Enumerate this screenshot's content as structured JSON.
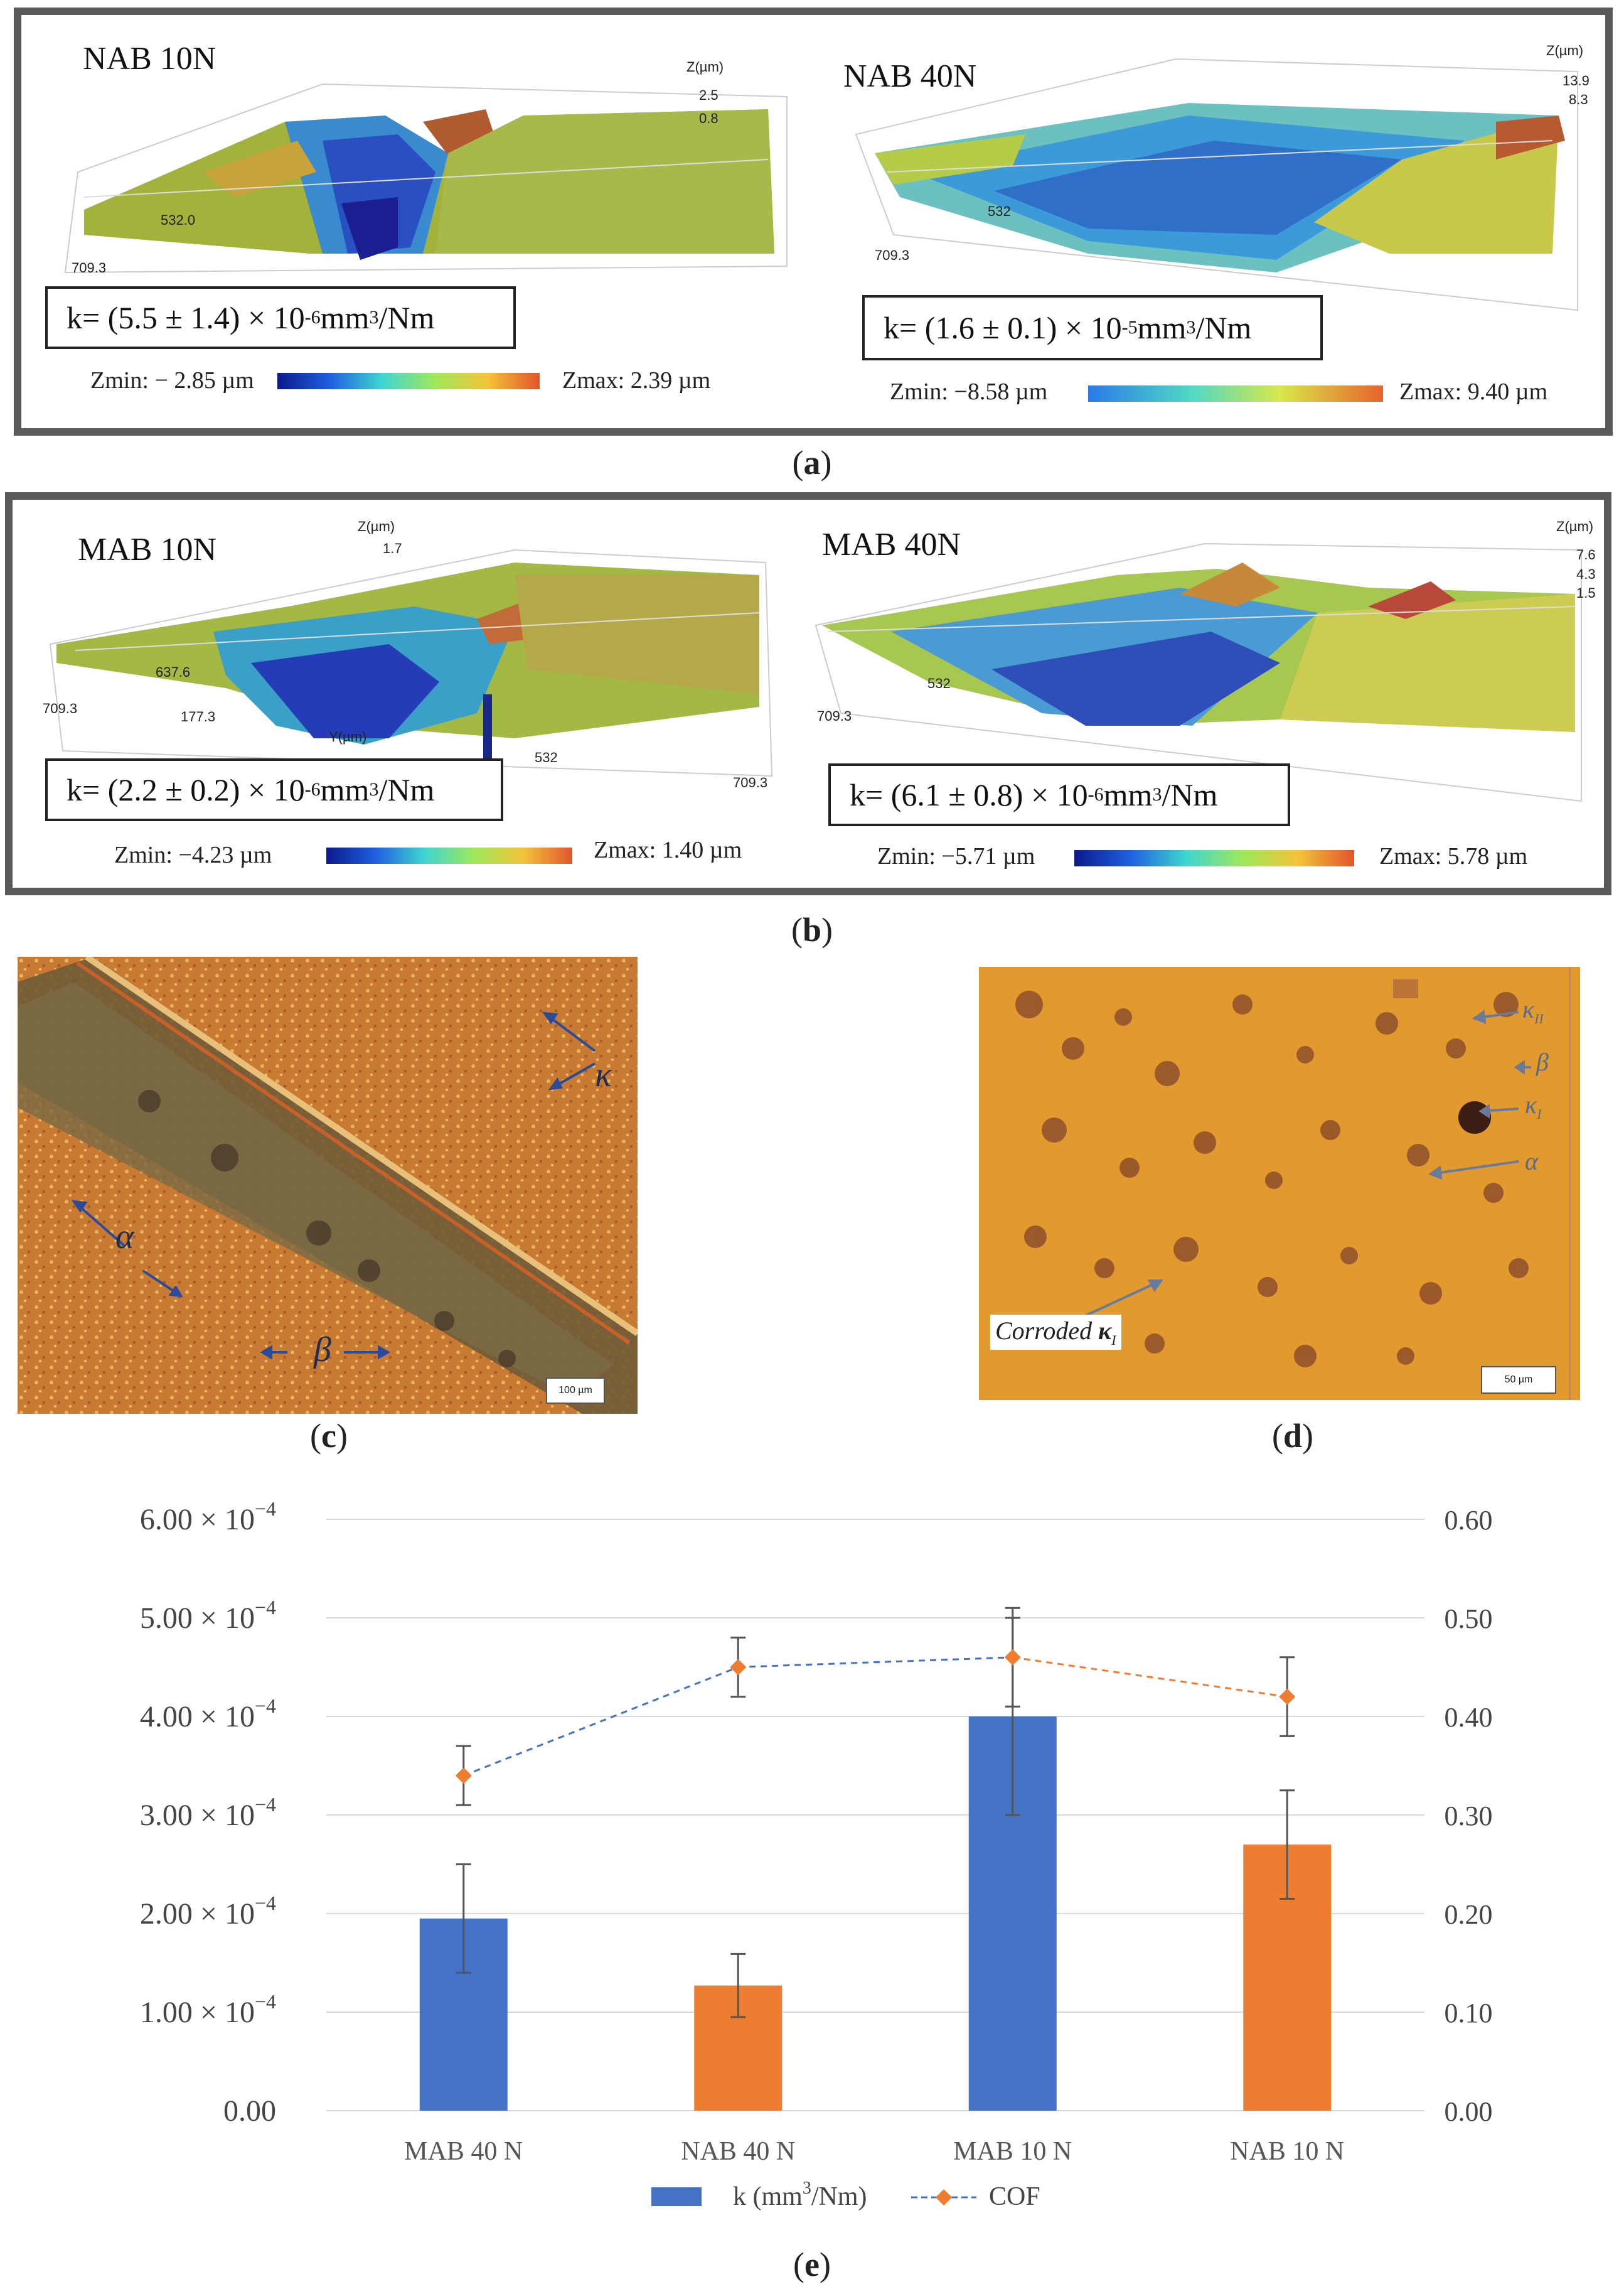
{
  "panel_a": {
    "caption": "a",
    "left": {
      "title": "NAB 10N",
      "k": "k= (5.5 ± 1.4) × 10",
      "k_exp": "-6",
      "k_unit": " mm",
      "k_unit_exp": "3",
      "k_unit_tail": "/Nm",
      "zmin": "Zmin: − 2.85 µm",
      "zmax": "Zmax: 2.39 µm",
      "ticks": {
        "z_axis": "Z(µm)",
        "z1": "2.5",
        "z2": "0.8",
        "y": "532.0",
        "x": "709.3"
      }
    },
    "right": {
      "title": "NAB 40N",
      "k": "k= (1.6 ± 0.1) × 10",
      "k_exp": "-5",
      "k_unit": " mm",
      "k_unit_exp": "3",
      "k_unit_tail": "/Nm",
      "zmin": "Zmin: −8.58 µm",
      "zmax": "Zmax: 9.40 µm",
      "ticks": {
        "z_axis": "Z(µm)",
        "z1": "13.9",
        "z2": "8.3",
        "x": "709.3",
        "y": "532"
      }
    }
  },
  "panel_b": {
    "caption": "b",
    "left": {
      "title": "MAB 10N",
      "k": "k= (2.2 ± 0.2) × 10",
      "k_exp": "-6",
      "k_unit": " mm",
      "k_unit_exp": "3",
      "k_unit_tail": "/Nm",
      "zmin": "Zmin: −4.23 µm",
      "zmax": "Zmax: 1.40 µm",
      "ticks": {
        "z_axis": "Z(µm)",
        "z1": "1.7",
        "a": "637.6",
        "b": "709.3",
        "c": "177.3",
        "y_axis": "Y(µm)",
        "d": "532",
        "e": "709.3"
      }
    },
    "right": {
      "title": "MAB 40N",
      "k": "k= (6.1 ± 0.8) × 10",
      "k_exp": "-6",
      "k_unit": " mm",
      "k_unit_exp": "3",
      "k_unit_tail": "/Nm",
      "zmin": "Zmin: −5.71 µm",
      "zmax": "Zmax: 5.78 µm",
      "ticks": {
        "z_axis": "Z(µm)",
        "z1": "7.6",
        "z2": "4.3",
        "z3": "1.5",
        "a": "532",
        "b": "709.3"
      }
    }
  },
  "panel_c": {
    "caption": "c",
    "labels": {
      "kappa": "κ",
      "alpha": "α",
      "beta": "β"
    },
    "scale": "100 µm"
  },
  "panel_d": {
    "caption": "d",
    "labels": {
      "kappa2": "κ",
      "kappa2_sub": "II",
      "beta": "β",
      "kappa1": "κ",
      "kappa1_sub": "I",
      "alpha": "α",
      "corroded": "Corroded ",
      "corroded_k": "κ",
      "corroded_sub": "I"
    },
    "scale": "50 µm"
  },
  "panel_e": {
    "caption": "e",
    "chart_data": {
      "type": "bar",
      "categories": [
        "MAB 40 N",
        "NAB 40 N",
        "MAB 10 N",
        "NAB 10 N"
      ],
      "series": [
        {
          "name": "k (mm³/Nm)",
          "type": "bar",
          "axis": "left",
          "values": [
            0.000195,
            0.000127,
            0.0004,
            0.00027
          ],
          "errors": [
            5.5e-05,
            3.2e-05,
            0.0001,
            5.5e-05
          ],
          "colors": [
            "#4472c4",
            "#ed7d31",
            "#4472c4",
            "#ed7d31"
          ]
        },
        {
          "name": "COF",
          "type": "line",
          "axis": "right",
          "style": "dashed",
          "values": [
            0.34,
            0.45,
            0.46,
            0.42
          ],
          "errors": [
            0.03,
            0.03,
            0.05,
            0.04
          ],
          "marker_color": "#ed7d31"
        }
      ],
      "left_axis": {
        "ylim": [
          0,
          0.0006
        ],
        "ticks": [
          {
            "v": 0,
            "mant": "0.00",
            "exp": ""
          },
          {
            "v": 0.0001,
            "mant": "1.00 × 10",
            "exp": "−4"
          },
          {
            "v": 0.0002,
            "mant": "2.00 × 10",
            "exp": "−4"
          },
          {
            "v": 0.0003,
            "mant": "3.00 × 10",
            "exp": "−4"
          },
          {
            "v": 0.0004,
            "mant": "4.00 × 10",
            "exp": "−4"
          },
          {
            "v": 0.0005,
            "mant": "5.00 × 10",
            "exp": "−4"
          },
          {
            "v": 0.0006,
            "mant": "6.00 × 10",
            "exp": "−4"
          }
        ]
      },
      "right_axis": {
        "ylim": [
          0,
          0.6
        ],
        "ticks": [
          "0.00",
          "0.10",
          "0.20",
          "0.30",
          "0.40",
          "0.50",
          "0.60"
        ]
      },
      "legend": {
        "position": "bottom",
        "k_label": "k (mm",
        "k_exp": "3",
        "k_tail": "/Nm)",
        "cof_label": "COF"
      },
      "grid": true
    }
  }
}
